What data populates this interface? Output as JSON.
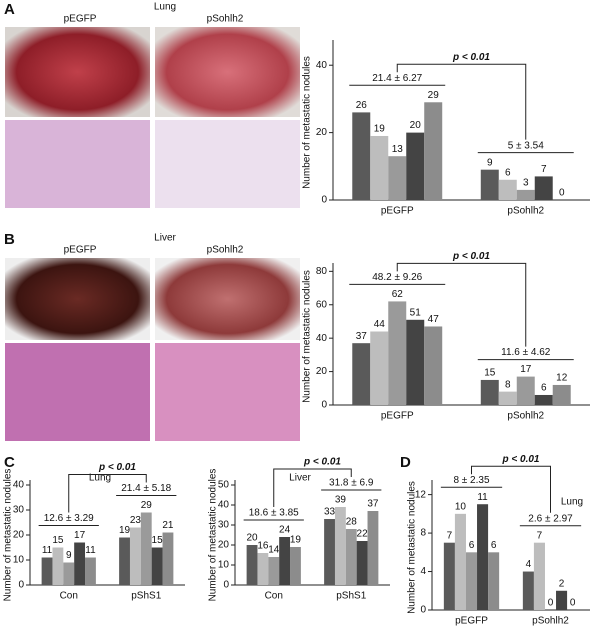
{
  "figure": {
    "panel_labels": [
      "A",
      "B",
      "C",
      "D"
    ],
    "photos": [
      {
        "title": "Lung",
        "left": "pEGFP",
        "right": "pSohlh2"
      },
      {
        "title": "Liver",
        "left": "pEGFP",
        "right": "pSohlh2"
      }
    ]
  },
  "chart_data": [
    {
      "type": "bar",
      "ylabel": "Number of metastatic nodules",
      "categories": [
        "pEGFP",
        "pSohlh2"
      ],
      "series": [
        {
          "color": "#5a5a5a",
          "values": [
            26,
            9
          ]
        },
        {
          "color": "#bdbdbd",
          "values": [
            19,
            6
          ]
        },
        {
          "color": "#9a9a9a",
          "values": [
            13,
            3
          ]
        },
        {
          "color": "#444444",
          "values": [
            20,
            7
          ]
        },
        {
          "color": "#8c8c8c",
          "values": [
            29,
            0
          ]
        }
      ],
      "group_annotations": [
        "21.4 ± 6.27",
        "5 ± 3.54"
      ],
      "significance": "p < 0.01",
      "ylim": [
        0,
        46
      ],
      "yticks": [
        0,
        20,
        40
      ]
    },
    {
      "type": "bar",
      "ylabel": "Number of metastatic nodules",
      "categories": [
        "pEGFP",
        "pSohlh2"
      ],
      "series": [
        {
          "color": "#5a5a5a",
          "values": [
            37,
            15
          ]
        },
        {
          "color": "#bdbdbd",
          "values": [
            44,
            8
          ]
        },
        {
          "color": "#9a9a9a",
          "values": [
            62,
            17
          ]
        },
        {
          "color": "#444444",
          "values": [
            51,
            6
          ]
        },
        {
          "color": "#8c8c8c",
          "values": [
            47,
            12
          ]
        }
      ],
      "group_annotations": [
        "48.2 ± 9.26",
        "11.6 ± 4.62"
      ],
      "significance": "p < 0.01",
      "ylim": [
        0,
        82
      ],
      "yticks": [
        0,
        20,
        40,
        60,
        80
      ]
    },
    {
      "type": "bar",
      "title": "Lung",
      "ylabel": "Number of metastatic nodules",
      "categories": [
        "Con",
        "pShS1"
      ],
      "series": [
        {
          "color": "#5a5a5a",
          "values": [
            11,
            19
          ]
        },
        {
          "color": "#bdbdbd",
          "values": [
            15,
            23
          ]
        },
        {
          "color": "#9a9a9a",
          "values": [
            9,
            29
          ]
        },
        {
          "color": "#444444",
          "values": [
            17,
            15
          ]
        },
        {
          "color": "#8c8c8c",
          "values": [
            11,
            21
          ]
        }
      ],
      "group_annotations": [
        "12.6 ± 3.29",
        "21.4 ± 5.18"
      ],
      "significance": "p < 0.01",
      "ylim": [
        0,
        40
      ],
      "yticks": [
        0,
        10,
        20,
        30,
        40
      ]
    },
    {
      "type": "bar",
      "title": "Liver",
      "ylabel": "Number of metastatic nodules",
      "categories": [
        "Con",
        "pShS1"
      ],
      "series": [
        {
          "color": "#5a5a5a",
          "values": [
            20,
            33
          ]
        },
        {
          "color": "#bdbdbd",
          "values": [
            16,
            39
          ]
        },
        {
          "color": "#9a9a9a",
          "values": [
            14,
            28
          ]
        },
        {
          "color": "#444444",
          "values": [
            24,
            22
          ]
        },
        {
          "color": "#8c8c8c",
          "values": [
            19,
            37
          ]
        }
      ],
      "group_annotations": [
        "18.6 ± 3.85",
        "31.8 ± 6.9"
      ],
      "significance": "p < 0.01",
      "ylim": [
        0,
        50
      ],
      "yticks": [
        0,
        10,
        20,
        30,
        40,
        50
      ]
    },
    {
      "type": "bar",
      "title": "Lung",
      "ylabel": "Number of metastatic nodules",
      "categories": [
        "pEGFP",
        "pSohlh2"
      ],
      "series": [
        {
          "color": "#5a5a5a",
          "values": [
            7,
            4
          ]
        },
        {
          "color": "#bdbdbd",
          "values": [
            10,
            7
          ]
        },
        {
          "color": "#9a9a9a",
          "values": [
            6,
            0
          ]
        },
        {
          "color": "#444444",
          "values": [
            11,
            2
          ]
        },
        {
          "color": "#8c8c8c",
          "values": [
            6,
            0
          ]
        }
      ],
      "group_annotations": [
        "8 ± 2.35",
        "2.6 ± 2.97"
      ],
      "significance": "p < 0.01",
      "ylim": [
        0,
        13
      ],
      "yticks": [
        0,
        4,
        8,
        12
      ]
    }
  ]
}
